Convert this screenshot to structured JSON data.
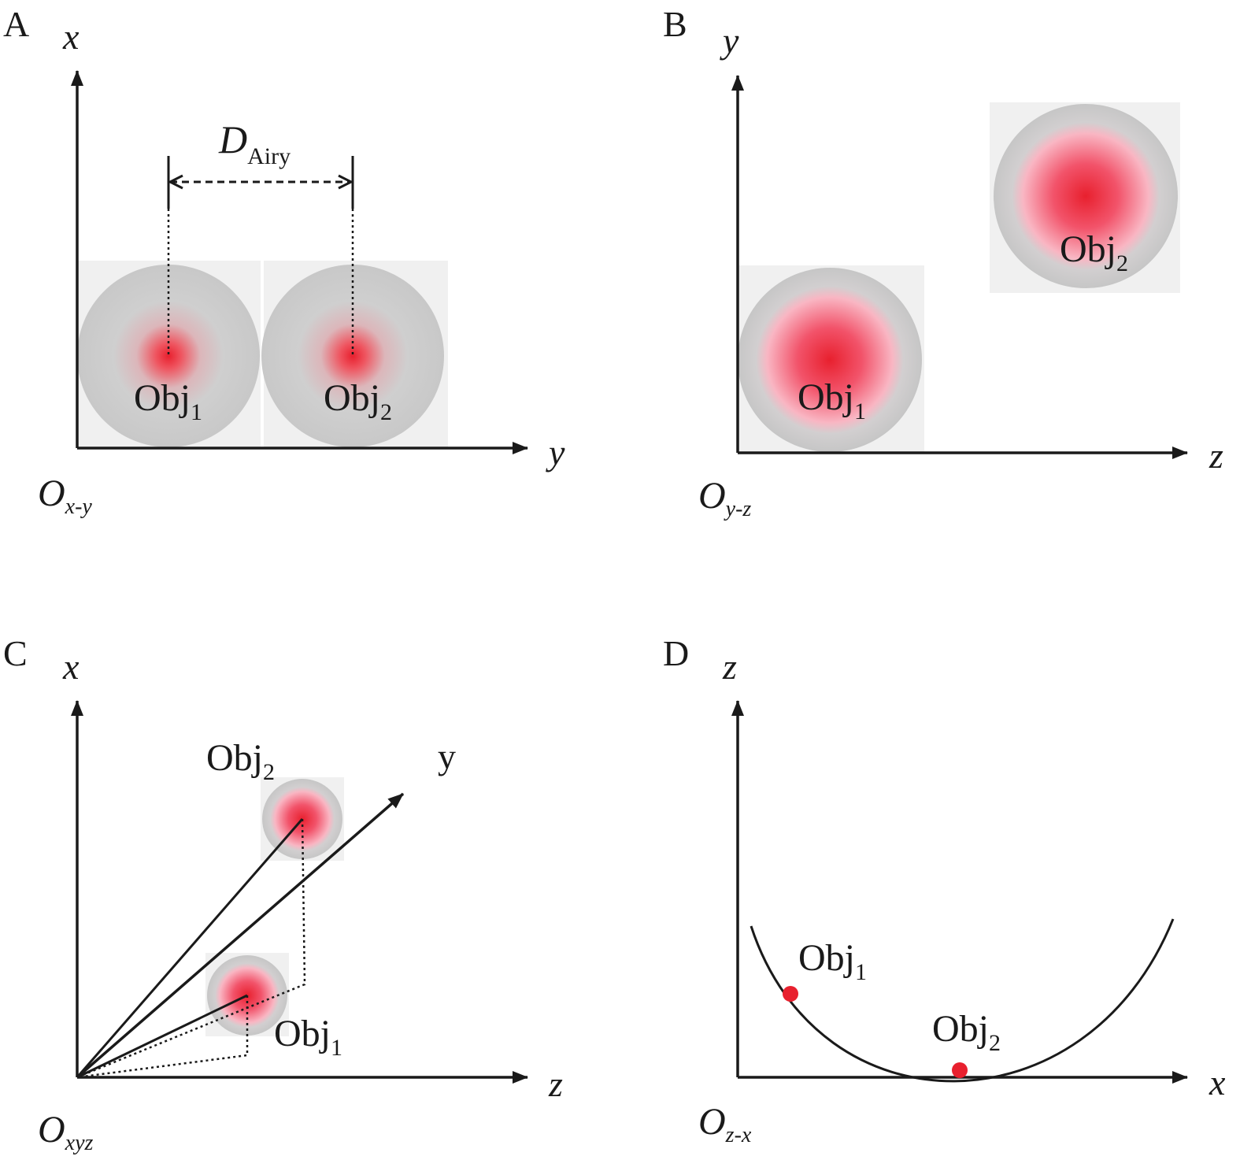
{
  "panels": {
    "A": {
      "letter": "A",
      "x_axis": "x",
      "y_axis": "y",
      "origin_main": "O",
      "origin_sub": "x-y",
      "dimension_main": "D",
      "dimension_sub": "Airy",
      "obj1_main": "Obj",
      "obj1_sub": "1",
      "obj2_main": "Obj",
      "obj2_sub": "2"
    },
    "B": {
      "letter": "B",
      "v_axis": "y",
      "h_axis": "z",
      "origin_main": "O",
      "origin_sub": "y-z",
      "obj1_main": "Obj",
      "obj1_sub": "1",
      "obj2_main": "Obj",
      "obj2_sub": "2"
    },
    "C": {
      "letter": "C",
      "v_axis": "x",
      "h_axis": "z",
      "diag_axis": "y",
      "origin_main": "O",
      "origin_sub": "xyz",
      "obj1_main": "Obj",
      "obj1_sub": "1",
      "obj2_main": "Obj",
      "obj2_sub": "2"
    },
    "D": {
      "letter": "D",
      "v_axis": "z",
      "h_axis": "x",
      "origin_main": "O",
      "origin_sub": "z-x",
      "obj1_main": "Obj",
      "obj1_sub": "1",
      "obj2_main": "Obj",
      "obj2_sub": "2"
    }
  },
  "colors": {
    "spot_center": "#e8202e",
    "spot_mid": "#f8b8c4",
    "spot_outer": "#c8c8c8",
    "marker": "#e8202e",
    "ink": "#1a1a1a"
  }
}
